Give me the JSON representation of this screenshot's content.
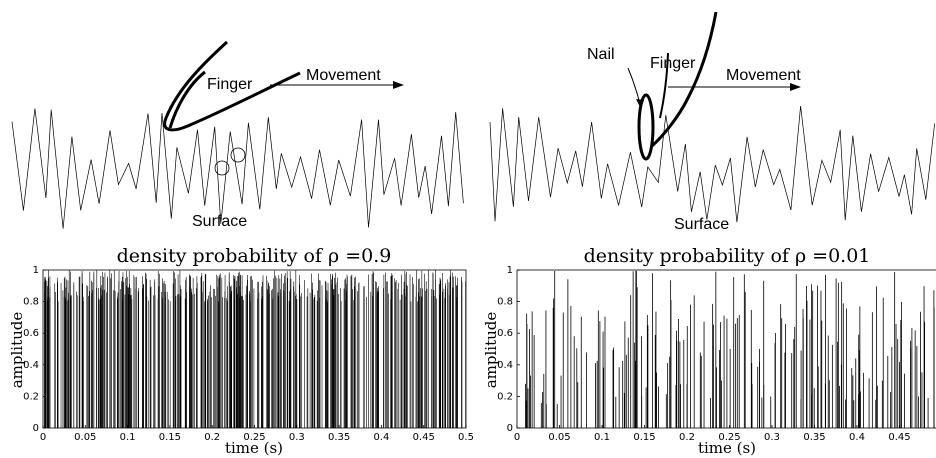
{
  "colors": {
    "ink": "#000000",
    "background": "#ffffff"
  },
  "diagrams": [
    {
      "finger_label": "Finger",
      "movement_label": "Movement",
      "surface_label": "Surface",
      "nail_label": ""
    },
    {
      "finger_label": "Finger",
      "movement_label": "Movement",
      "surface_label": "Surface",
      "nail_label": "Nail"
    }
  ],
  "chart_data": [
    {
      "type": "line",
      "title": "density probability of ρ =0.9",
      "xlabel": "time (s)",
      "ylabel": "amplitude",
      "xlim": [
        0,
        0.5
      ],
      "ylim": [
        0,
        1
      ],
      "x_ticks": [
        "0",
        "0.05",
        "0.1",
        "0.15",
        "0.2",
        "0.25",
        "0.3",
        "0.35",
        "0.4",
        "0.45",
        "0.5"
      ],
      "y_ticks": [
        "0",
        "0.2",
        "0.4",
        "0.6",
        "0.8",
        "1"
      ],
      "density": 0.9,
      "grid": false,
      "legend": "none"
    },
    {
      "type": "line",
      "title": "density probability of ρ =0.01",
      "xlabel": "time (s)",
      "ylabel": "amplitude",
      "xlim": [
        0,
        0.5
      ],
      "ylim": [
        0,
        1
      ],
      "x_ticks": [
        "0",
        "0.05",
        "0.1",
        "0.15",
        "0.2",
        "0.25",
        "0.3",
        "0.35",
        "0.4",
        "0.45"
      ],
      "y_ticks": [
        "0",
        "0.2",
        "0.4",
        "0.6",
        "0.8",
        "1"
      ],
      "density": 0.01,
      "grid": false,
      "legend": "none"
    }
  ]
}
